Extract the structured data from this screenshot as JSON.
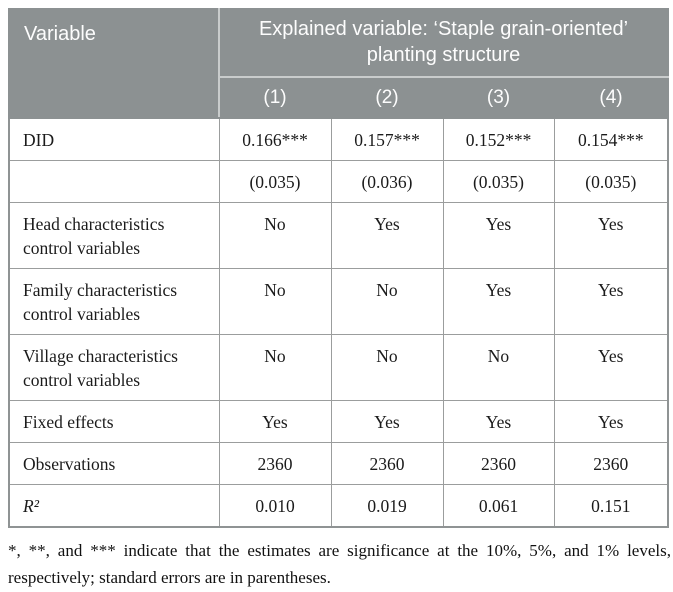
{
  "table": {
    "header": {
      "variable_label": "Variable",
      "explained_label": "Explained variable: ‘Staple grain-oriented’ planting structure",
      "columns": [
        "(1)",
        "(2)",
        "(3)",
        "(4)"
      ]
    },
    "rows": [
      {
        "label": "DID",
        "math": false,
        "values": [
          "0.166***",
          "0.157***",
          "0.152***",
          "0.154***"
        ]
      },
      {
        "label": "",
        "math": false,
        "values": [
          "(0.035)",
          "(0.036)",
          "(0.035)",
          "(0.035)"
        ]
      },
      {
        "label": "Head characteristics control variables",
        "math": false,
        "values": [
          "No",
          "Yes",
          "Yes",
          "Yes"
        ]
      },
      {
        "label": "Family characteristics control variables",
        "math": false,
        "values": [
          "No",
          "No",
          "Yes",
          "Yes"
        ]
      },
      {
        "label": "Village characteristics control variables",
        "math": false,
        "values": [
          "No",
          "No",
          "No",
          "Yes"
        ]
      },
      {
        "label": "Fixed effects",
        "math": false,
        "values": [
          "Yes",
          "Yes",
          "Yes",
          "Yes"
        ]
      },
      {
        "label": "Observations",
        "math": false,
        "values": [
          "2360",
          "2360",
          "2360",
          "2360"
        ]
      },
      {
        "label": "R²",
        "math": true,
        "values": [
          "0.010",
          "0.019",
          "0.061",
          "0.151"
        ]
      }
    ],
    "footnote": "*, **, and *** indicate that the estimates are significance at the 10%, 5%, and 1% levels, respectively; standard errors are in parentheses."
  },
  "colors": {
    "header_background": "#8c9192",
    "header_text": "#fdfdfd",
    "body_text": "#1b1b1b",
    "grid_line": "#9b9d9d"
  }
}
